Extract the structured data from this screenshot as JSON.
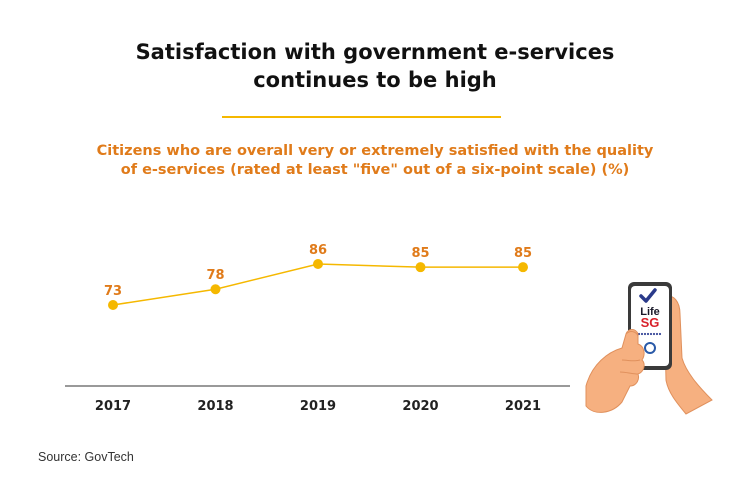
{
  "title_line1": "Satisfaction with government e-services",
  "title_line2": "continues to be high",
  "subtitle_line1": "Citizens who are overall very or extremely satisfied with the quality",
  "subtitle_line2": "of e-services (rated at least \"five\" out of a six-point scale) (%)",
  "source": "Source: GovTech",
  "phone": {
    "brand_line1": "Life",
    "brand_line2": "SG"
  },
  "colors": {
    "line": "#f5b800",
    "label": "#e07b1a",
    "axis": "#333333",
    "rule": "#f5b800"
  },
  "chart_data": {
    "type": "line",
    "categories": [
      "2017",
      "2018",
      "2019",
      "2020",
      "2021"
    ],
    "values": [
      73,
      78,
      86,
      85,
      85
    ],
    "title": "Satisfaction with government e-services continues to be high",
    "subtitle": "Citizens who are overall very or extremely satisfied with the quality of e-services (rated at least \"five\" out of a six-point scale) (%)",
    "data_labels": true,
    "grid": false,
    "legend": "none"
  }
}
